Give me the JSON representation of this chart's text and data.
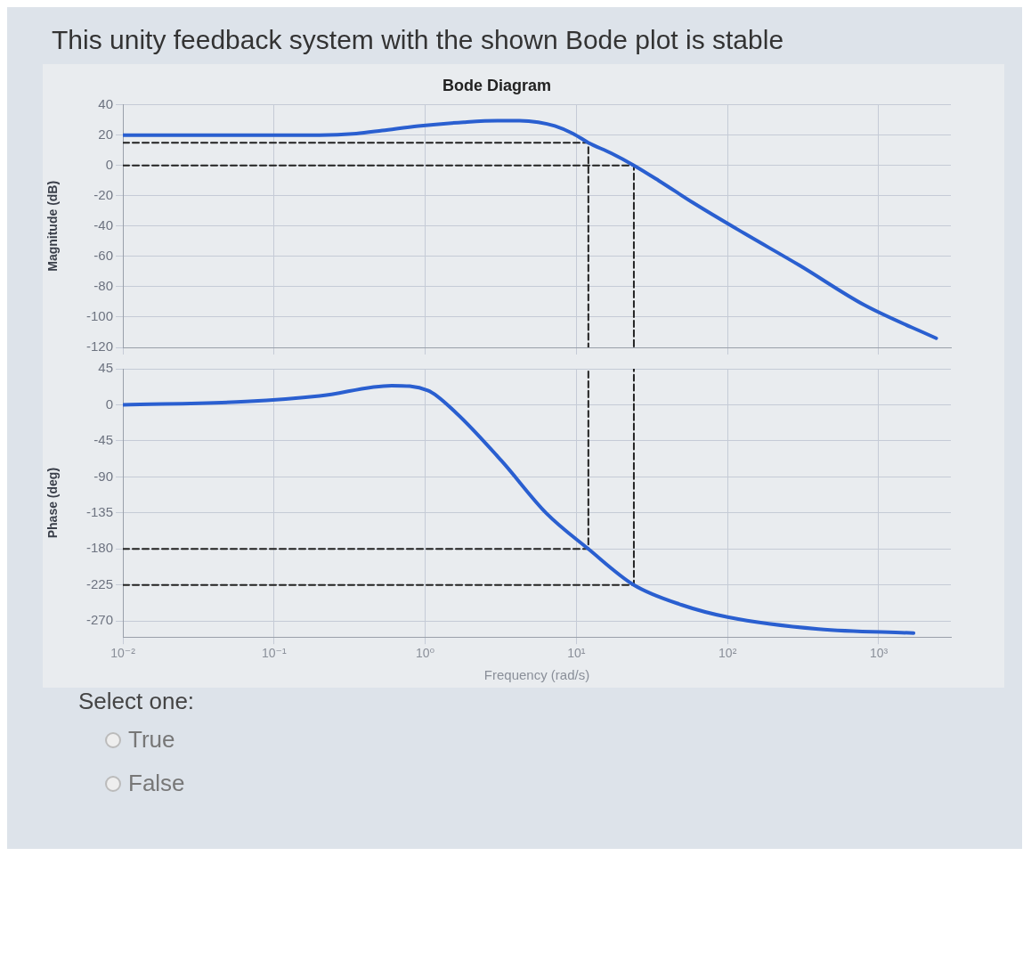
{
  "chart_data": [
    {
      "type": "other",
      "title": "This unity feedback system with the shown Bode plot is stable",
      "annotations": [
        "Select one:",
        "True",
        "False"
      ]
    },
    {
      "type": "line",
      "title": "Bode Diagram",
      "ylabel": "Magnitude (dB)",
      "xlim": [
        0.01,
        3000
      ],
      "log": "x",
      "ylim": [
        -120,
        40
      ],
      "yticks": [
        -120,
        -100,
        -80,
        -60,
        -40,
        -20,
        0,
        20,
        40
      ],
      "xticks": [
        {
          "value": 0.01,
          "label": null
        },
        {
          "value": 0.1,
          "label": null
        },
        {
          "value": 1,
          "label": null
        },
        {
          "value": 10,
          "label": null
        },
        {
          "value": 100,
          "label": null
        },
        {
          "value": 1000,
          "label": null
        }
      ],
      "grid": true,
      "tick_labels": "y",
      "marker": "none",
      "legend": false,
      "series": [
        {
          "type": "line",
          "color": "#2a5fd0",
          "line_style": "solid",
          "x": [
            0.01,
            0.2,
            0.35,
            0.52,
            0.9,
            1.8,
            3,
            4.2,
            5.6,
            7.2,
            9.5,
            12,
            17,
            24,
            35,
            60,
            130,
            300,
            800,
            2400
          ],
          "values": [
            20,
            20,
            21,
            23,
            26,
            28.5,
            29.5,
            29.5,
            28.5,
            26,
            21,
            15,
            8,
            0,
            -10,
            -25,
            -45,
            -66,
            -92,
            -114
          ]
        },
        {
          "type": "line",
          "color": "#222222",
          "line_style": "dashed",
          "x": [
            0.01,
            12,
            12
          ],
          "values": [
            15,
            15,
            -120
          ]
        },
        {
          "type": "line",
          "color": "#222222",
          "line_style": "dashed",
          "x": [
            0.01,
            24,
            24
          ],
          "values": [
            0,
            0,
            -120
          ]
        }
      ]
    },
    {
      "type": "line",
      "xlabel": "Frequency (rad/s)",
      "ylabel": "Phase (deg)",
      "xlim": [
        0.01,
        3000
      ],
      "log": "x",
      "ylim": [
        -290,
        45
      ],
      "yticks": [
        -270,
        -225,
        -180,
        -135,
        -90,
        -45,
        0,
        45
      ],
      "xticks": [
        {
          "value": 0.01,
          "label": "10⁻²"
        },
        {
          "value": 0.1,
          "label": "10⁻¹"
        },
        {
          "value": 1,
          "label": "10⁰"
        },
        {
          "value": 10,
          "label": "10¹"
        },
        {
          "value": 100,
          "label": "10²"
        },
        {
          "value": 1000,
          "label": "10³"
        }
      ],
      "grid": true,
      "marker": "none",
      "legend": false,
      "series": [
        {
          "type": "line",
          "color": "#2a5fd0",
          "line_style": "solid",
          "x": [
            0.01,
            0.065,
            0.2,
            0.6,
            1.04,
            1.6,
            3.2,
            6.3,
            12,
            24,
            50,
            100,
            400,
            1700
          ],
          "values": [
            0,
            4,
            11,
            24,
            18,
            -10,
            -70,
            -135,
            -180,
            -225,
            -250,
            -265,
            -280,
            -285
          ]
        },
        {
          "type": "line",
          "color": "#222222",
          "line_style": "dashed",
          "x": [
            0.01,
            12,
            12
          ],
          "values": [
            -180,
            -180,
            45
          ]
        },
        {
          "type": "line",
          "color": "#222222",
          "line_style": "dashed",
          "x": [
            0.01,
            24,
            24
          ],
          "values": [
            -225,
            -225,
            45
          ]
        }
      ]
    }
  ]
}
